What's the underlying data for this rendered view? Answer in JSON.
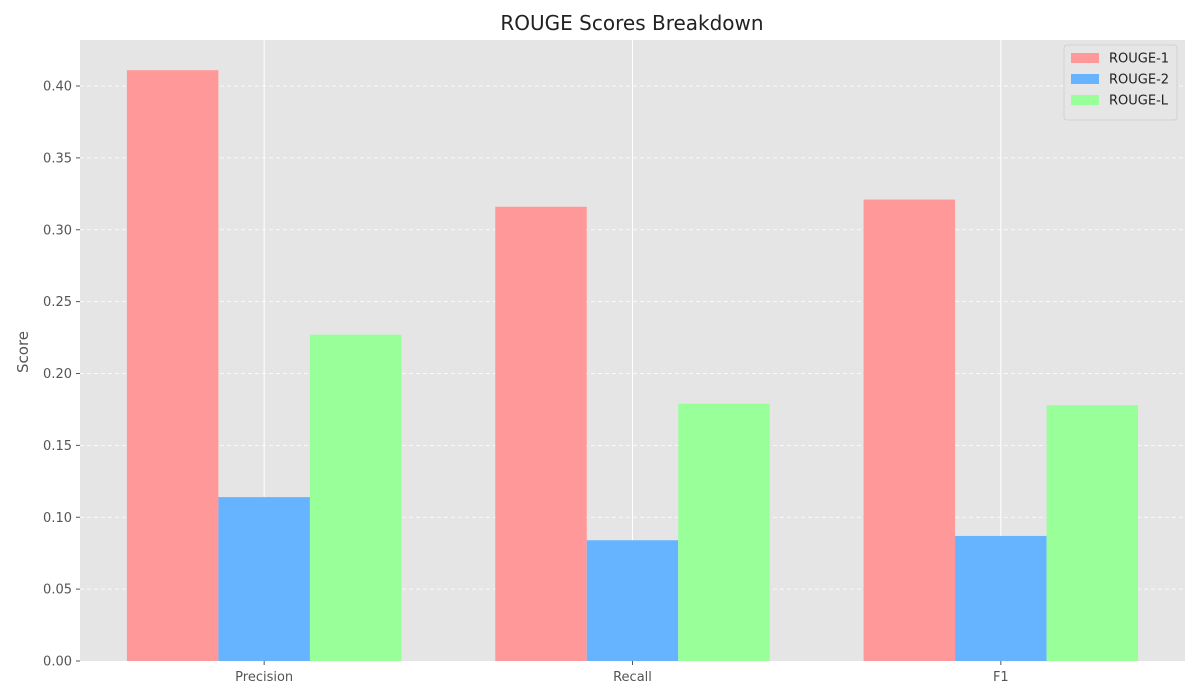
{
  "chart_data": {
    "type": "bar",
    "title": "ROUGE Scores Breakdown",
    "xlabel": "",
    "ylabel": "Score",
    "categories": [
      "Precision",
      "Recall",
      "F1"
    ],
    "series": [
      {
        "name": "ROUGE-1",
        "color": "#ff9999",
        "values": [
          0.411,
          0.316,
          0.321
        ]
      },
      {
        "name": "ROUGE-2",
        "color": "#66b3ff",
        "values": [
          0.114,
          0.084,
          0.087
        ]
      },
      {
        "name": "ROUGE-L",
        "color": "#99ff99",
        "values": [
          0.227,
          0.179,
          0.178
        ]
      }
    ],
    "ylim": [
      0,
      0.432
    ],
    "yticks": [
      0.0,
      0.05,
      0.1,
      0.15,
      0.2,
      0.25,
      0.3,
      0.35,
      0.4
    ],
    "ytick_labels": [
      "0.00",
      "0.05",
      "0.10",
      "0.15",
      "0.20",
      "0.25",
      "0.30",
      "0.35",
      "0.40"
    ],
    "grid": true,
    "legend_position": "top-right",
    "background_color": "#e5e5e5"
  }
}
